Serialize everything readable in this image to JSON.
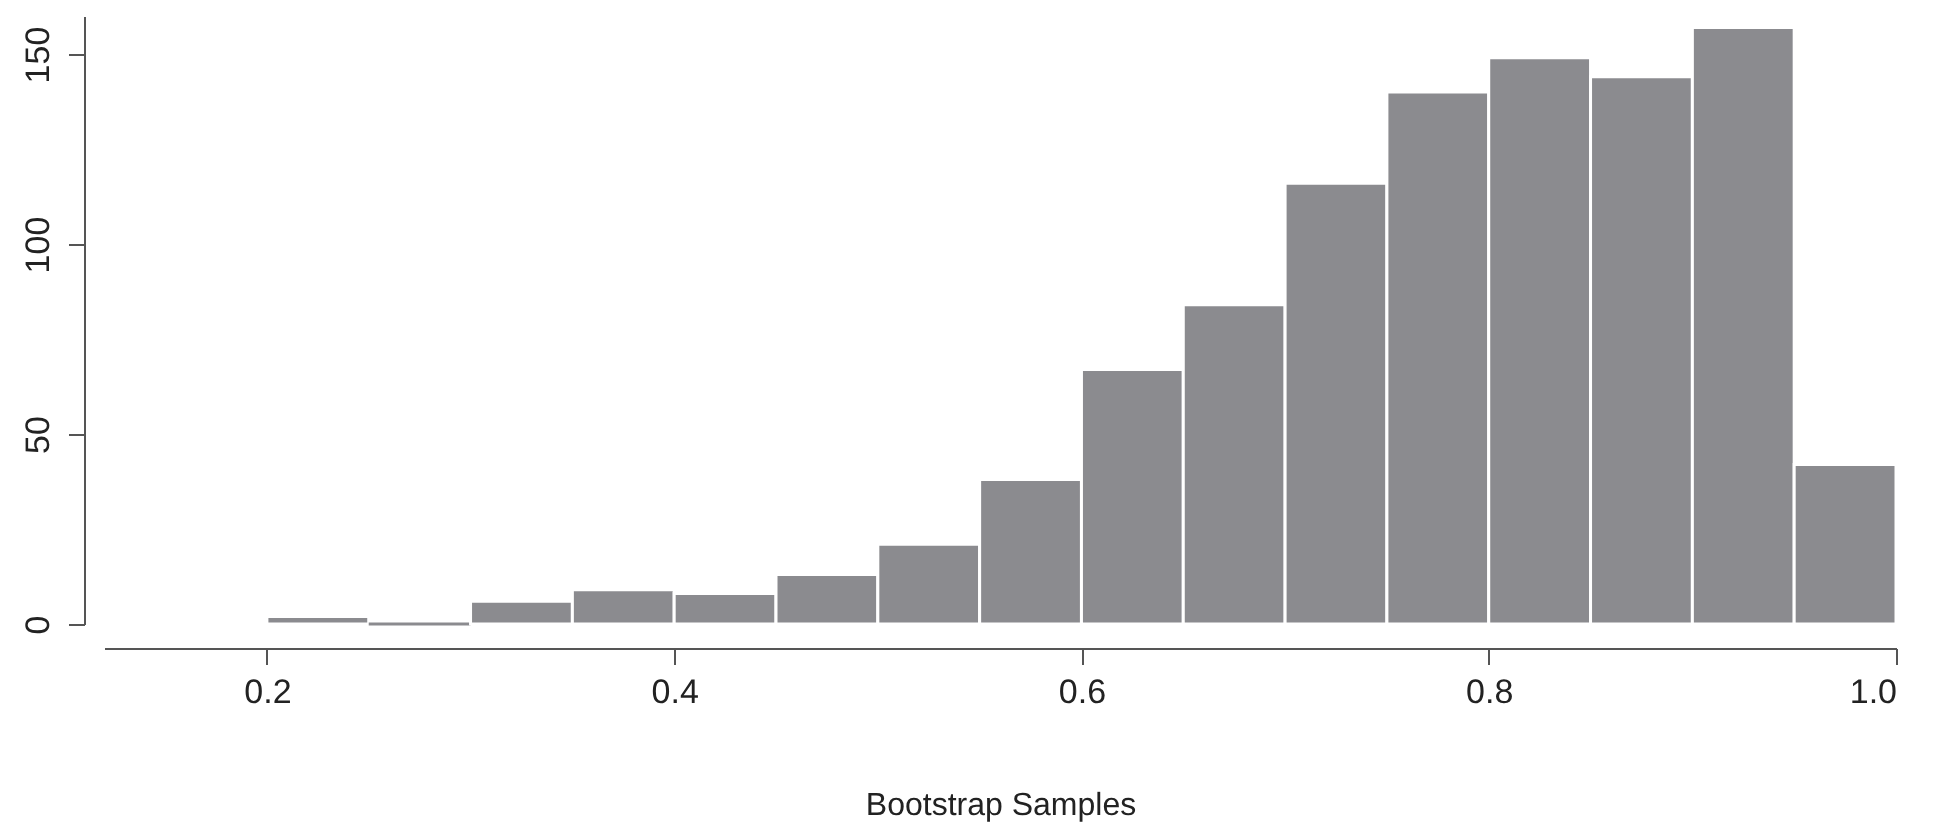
{
  "chart_data": {
    "type": "histogram",
    "xlabel": "Bootstrap Samples",
    "bins": [
      0.2,
      0.25,
      0.3,
      0.35,
      0.4,
      0.45,
      0.5,
      0.55,
      0.6,
      0.65,
      0.7,
      0.75,
      0.8,
      0.85,
      0.9,
      0.95,
      1.0
    ],
    "values": [
      2,
      0,
      6,
      9,
      8,
      13,
      21,
      38,
      67,
      84,
      116,
      140,
      149,
      144,
      157,
      42
    ],
    "color": "#8b8b8f",
    "xlim": [
      0.12,
      1.0
    ],
    "xticks": [
      0.2,
      0.4,
      0.6,
      0.8,
      {
        "value": 1,
        "label": "1.0"
      }
    ],
    "ylim": [
      0,
      160
    ],
    "yticks": [
      0,
      50,
      100,
      150
    ],
    "grid": false
  }
}
